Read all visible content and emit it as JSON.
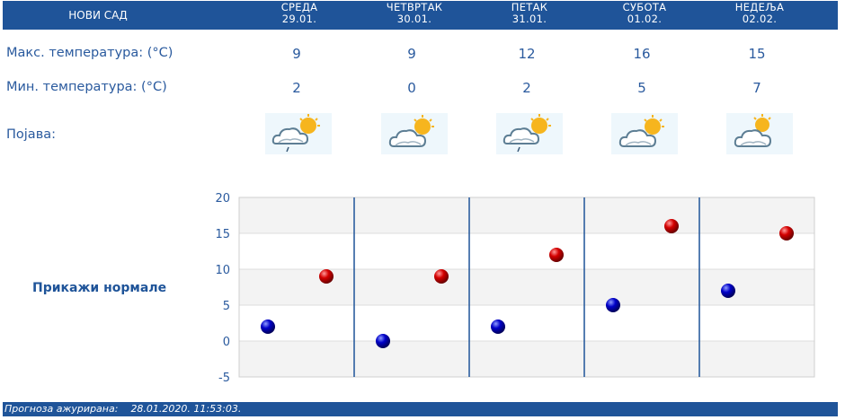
{
  "header": {
    "city": "НОВИ САД"
  },
  "days": [
    {
      "name": "СРЕДА",
      "date": "29.01.",
      "max": 9,
      "min": 2,
      "icon": "rain-cloud-sun-icon"
    },
    {
      "name": "ЧЕТВРТАК",
      "date": "30.01.",
      "max": 9,
      "min": 0,
      "icon": "cloud-sun-icon"
    },
    {
      "name": "ПЕТАК",
      "date": "31.01.",
      "max": 12,
      "min": 2,
      "icon": "rain-cloud-sun-icon"
    },
    {
      "name": "СУБОТА",
      "date": "01.02.",
      "max": 16,
      "min": 5,
      "icon": "cloud-sun-icon"
    },
    {
      "name": "НЕДЕЉА",
      "date": "02.02.",
      "max": 15,
      "min": 7,
      "icon": "cloud-sun-icon"
    }
  ],
  "labels": {
    "max_temp": "Макс. температура: (°C)",
    "min_temp": "Мин. температура: (°C)",
    "phenomenon": "Појава:"
  },
  "normals_link": "Прикажи нормале",
  "footer": {
    "label": "Прогноза ажурирана:",
    "timestamp": "28.01.2020. 11:53:03."
  },
  "colors": {
    "header_bg": "#1f5499",
    "text": "#2a5a9e",
    "max_marker": "#cc0000",
    "min_marker": "#0000b4"
  },
  "chart_data": {
    "type": "scatter",
    "categories": [
      "29.01.",
      "30.01.",
      "31.01.",
      "01.02.",
      "02.02."
    ],
    "series": [
      {
        "name": "Макс. температура",
        "values": [
          9,
          9,
          12,
          16,
          15
        ]
      },
      {
        "name": "Мин. температура",
        "values": [
          2,
          0,
          2,
          5,
          7
        ]
      }
    ],
    "ylim": [
      -5,
      20
    ],
    "yticks": [
      -5,
      0,
      5,
      10,
      15,
      20
    ],
    "title": "",
    "xlabel": "",
    "ylabel": ""
  }
}
